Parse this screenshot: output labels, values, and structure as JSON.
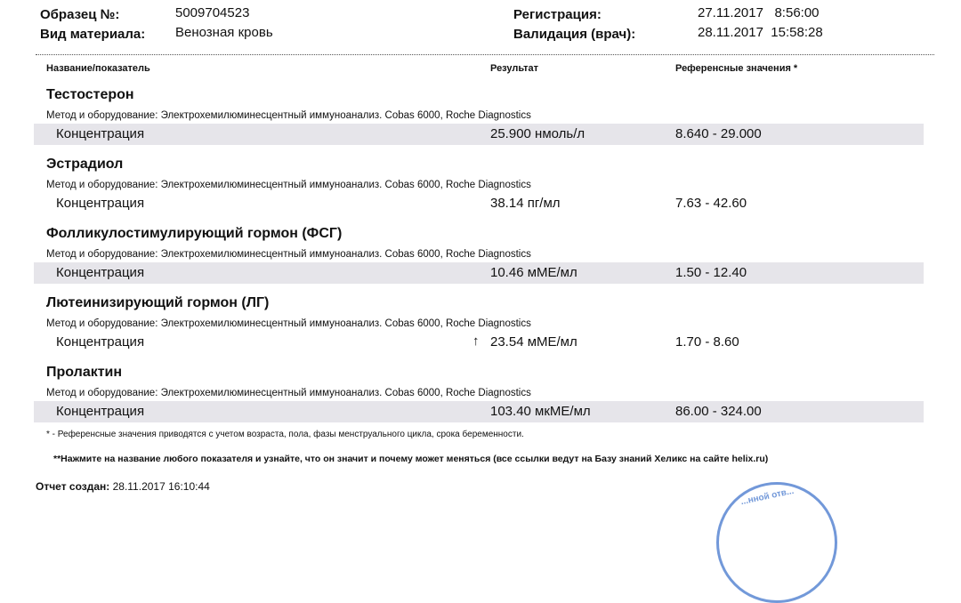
{
  "header": {
    "sample_label": "Образец №:",
    "sample_value": "5009704523",
    "material_label": "Вид материала:",
    "material_value": "Венозная кровь",
    "registration_label": "Регистрация:",
    "registration_value": "27.11.2017   8:56:00",
    "validation_label": "Валидация (врач):",
    "validation_value": "28.11.2017  15:58:28"
  },
  "columns": {
    "name": "Название/показатель",
    "result": "Результат",
    "reference": "Референсные значения *"
  },
  "tests": [
    {
      "title": "Тестостерон",
      "method": "Метод и оборудование:  Электрохемилюминесцентный иммуноанализ. Cobas 6000, Roche Diagnostics",
      "param": "Концентрация",
      "result": "25.900 нмоль/л",
      "flag": "",
      "reference": "8.640 - 29.000",
      "shaded": true
    },
    {
      "title": "Эстрадиол",
      "method": "Метод и оборудование:  Электрохемилюминесцентный иммуноанализ. Cobas 6000, Roche Diagnostics",
      "param": "Концентрация",
      "result": "38.14 пг/мл",
      "flag": "",
      "reference": "7.63 - 42.60",
      "shaded": false
    },
    {
      "title": "Фолликулостимулирующий гормон (ФСГ)",
      "method": "Метод и оборудование:  Электрохемилюминесцентный иммуноанализ. Cobas 6000, Roche Diagnostics",
      "param": "Концентрация",
      "result": "10.46 мМЕ/мл",
      "flag": "",
      "reference": "1.50 - 12.40",
      "shaded": true
    },
    {
      "title": "Лютеинизирующий гормон (ЛГ)",
      "method": "Метод и оборудование:  Электрохемилюминесцентный иммуноанализ. Cobas 6000, Roche Diagnostics",
      "param": "Концентрация",
      "result": "23.54 мМЕ/мл",
      "flag": "↑",
      "reference": "1.70 - 8.60",
      "shaded": false
    },
    {
      "title": "Пролактин",
      "method": "Метод и оборудование:  Электрохемилюминесцентный иммуноанализ. Cobas 6000, Roche Diagnostics",
      "param": "Концентрация",
      "result": "103.40 мкМЕ/мл",
      "flag": "",
      "reference": "86.00 - 324.00",
      "shaded": true
    }
  ],
  "notes": {
    "footnote1": "* - Референсные значения приводятся с учетом возраста, пола, фазы менструального цикла, срока беременности.",
    "footnote2": "**Нажмите на название любого показателя и узнайте, что он значит и почему может меняться (все ссылки ведут на Базу знаний Хеликс на сайте helix.ru)"
  },
  "report": {
    "created_label": "Отчет создан:",
    "created_value": "28.11.2017 16:10:44"
  },
  "stamp": {
    "text": "...нной отв...",
    "color": "#4f7fd0"
  },
  "colors": {
    "row_shade": "#e6e5ea"
  }
}
